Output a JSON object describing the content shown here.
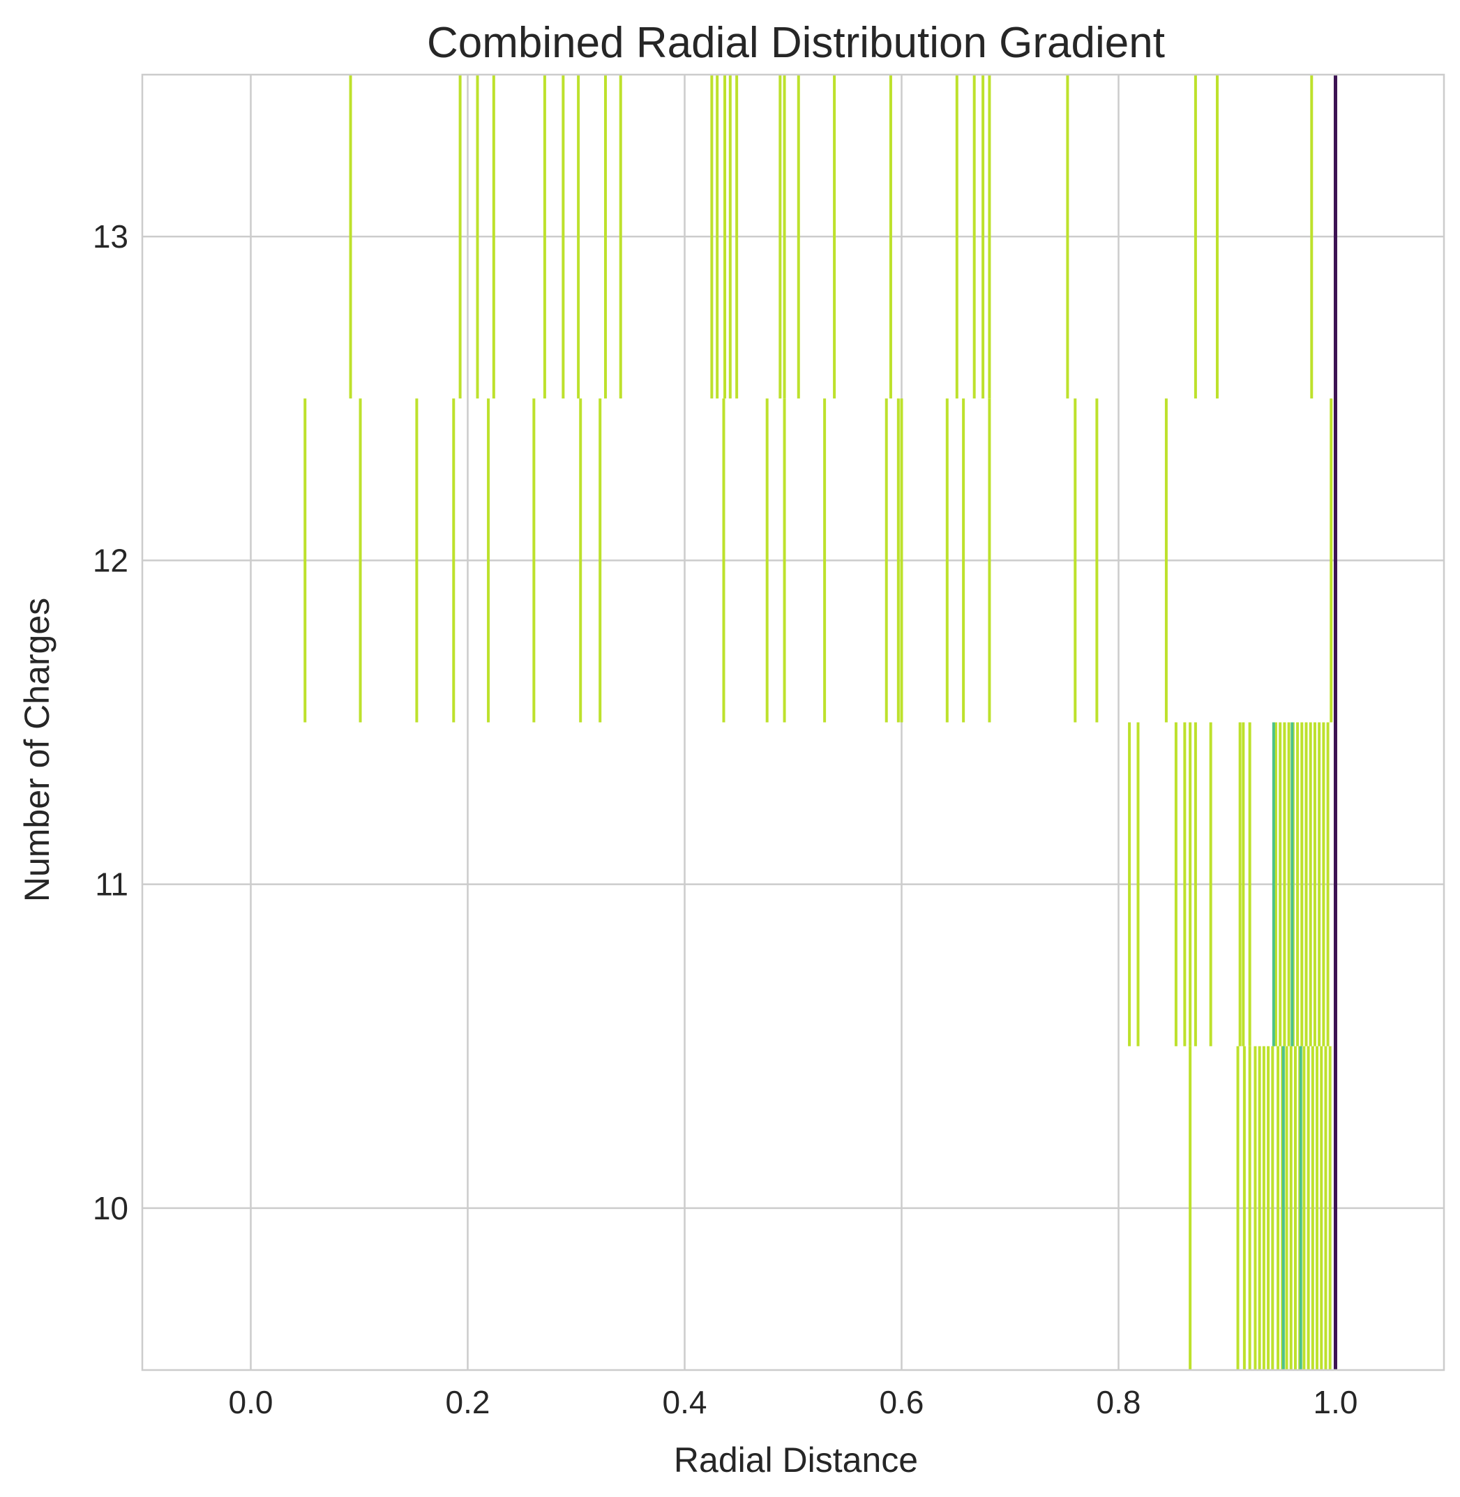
{
  "chart_data": {
    "type": "scatter",
    "title": "Combined Radial Distribution Gradient",
    "xlabel": "Radial Distance",
    "ylabel": "Number of Charges",
    "xlim": [
      -0.1,
      1.1
    ],
    "ylim": [
      9.5,
      13.5
    ],
    "x_ticks": [
      "0.0",
      "0.2",
      "0.4",
      "0.6",
      "0.8",
      "1.0"
    ],
    "y_ticks": [
      "10",
      "11",
      "12",
      "13"
    ],
    "grid": true,
    "mark_style": "vertical line segment spanning y ± 0.5",
    "colors": {
      "primary": "#bde12c",
      "mid": "#8fd14c",
      "teal": "#4cc28a",
      "edge": "#3d1453"
    },
    "series": [
      {
        "y": 13,
        "color": "#bde12c",
        "x": [
          0.092,
          0.193,
          0.209,
          0.224,
          0.271,
          0.288,
          0.302,
          0.327,
          0.341,
          0.425,
          0.43,
          0.437,
          0.442,
          0.448,
          0.488,
          0.492,
          0.505,
          0.538,
          0.59,
          0.651,
          0.667,
          0.675,
          0.681,
          0.753,
          0.871,
          0.891,
          0.978
        ]
      },
      {
        "y": 12,
        "color": "#bde12c",
        "x": [
          0.05,
          0.101,
          0.153,
          0.187,
          0.219,
          0.261,
          0.304,
          0.322,
          0.436,
          0.476,
          0.492,
          0.529,
          0.586,
          0.597,
          0.6,
          0.642,
          0.657,
          0.681,
          0.76,
          0.78,
          0.844,
          0.996
        ]
      },
      {
        "y": 11,
        "color": "#bde12c",
        "x": [
          0.81,
          0.818,
          0.853,
          0.861,
          0.866,
          0.871,
          0.885,
          0.912,
          0.915,
          0.921,
          0.945,
          0.949,
          0.953,
          0.957,
          0.961,
          0.965,
          0.969,
          0.973,
          0.977,
          0.981,
          0.985,
          0.989,
          0.993
        ]
      },
      {
        "y": 10,
        "color": "#bde12c",
        "x": [
          0.866,
          0.91,
          0.916,
          0.921,
          0.926,
          0.93,
          0.934,
          0.938,
          0.942,
          0.947,
          0.951,
          0.955,
          0.959,
          0.963,
          0.967,
          0.971,
          0.975,
          0.979,
          0.983,
          0.987,
          0.991,
          0.995
        ]
      },
      {
        "y": 11,
        "color": "#4cc28a",
        "x": [
          0.943,
          0.96
        ]
      },
      {
        "y": 10,
        "color": "#4cc28a",
        "x": [
          0.952,
          0.968
        ]
      },
      {
        "y": 11.5,
        "span": 4,
        "color": "#3d1453",
        "x": [
          1.0
        ]
      }
    ]
  }
}
